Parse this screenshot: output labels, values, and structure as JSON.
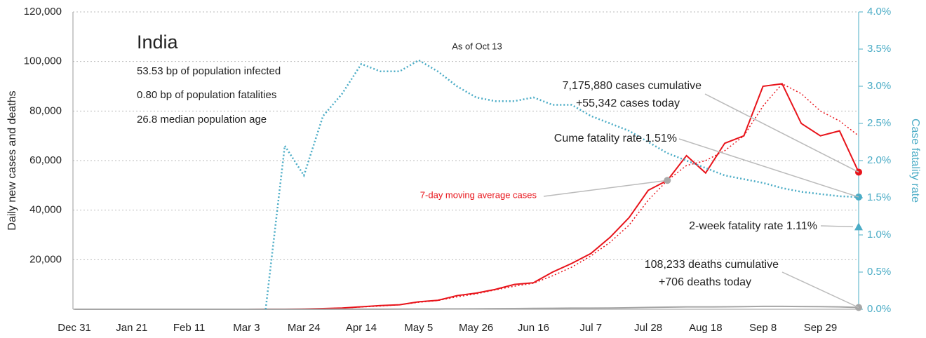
{
  "chart_data": {
    "type": "line",
    "title": "India",
    "subtitle": [
      "53.53 bp of population infected",
      "0.80 bp of population fatalities",
      "26.8 median population age"
    ],
    "ylabel": "Daily new cases and deaths",
    "y2label": "Case fatality rate",
    "categories": [
      "Dec 31",
      null,
      null,
      "Jan 21",
      null,
      null,
      "Feb 11",
      null,
      null,
      "Mar 3",
      null,
      null,
      "Mar 24",
      null,
      null,
      "Apr 14",
      null,
      null,
      "May 5",
      null,
      null,
      "May 26",
      null,
      null,
      "Jun 16",
      null,
      null,
      "Jul 7",
      null,
      null,
      "Jul 28",
      null,
      null,
      "Aug 18",
      null,
      null,
      "Sep 8",
      null,
      null,
      "Sep 29",
      null,
      null
    ],
    "series": [
      {
        "name": "Daily cases",
        "color": "#e8141b",
        "style": "solid",
        "values": [
          0,
          0,
          0,
          0,
          0,
          0,
          0,
          0,
          0,
          0,
          50,
          20,
          100,
          300,
          500,
          1000,
          1500,
          1800,
          3000,
          3600,
          5500,
          6500,
          8000,
          10000,
          10700,
          15000,
          18500,
          22500,
          29000,
          37000,
          48000,
          52000,
          62000,
          55000,
          67000,
          70000,
          90000,
          91000,
          75000,
          70000,
          72000,
          55342
        ]
      },
      {
        "name": "7-day moving average cases",
        "color": "#e8141b",
        "style": "dotted",
        "values": [
          0,
          0,
          0,
          0,
          0,
          0,
          0,
          0,
          0,
          0,
          40,
          60,
          90,
          250,
          500,
          900,
          1300,
          1800,
          2800,
          3500,
          5000,
          6200,
          7800,
          9300,
          10500,
          13500,
          17000,
          21500,
          27000,
          34000,
          44000,
          52000,
          58000,
          60000,
          64000,
          70000,
          82000,
          91000,
          87000,
          80000,
          76000,
          70000
        ]
      },
      {
        "name": "Daily deaths",
        "color": "#a6a6a6",
        "style": "solid",
        "values": [
          0,
          0,
          0,
          0,
          0,
          0,
          0,
          0,
          0,
          0,
          0,
          0,
          2,
          10,
          20,
          40,
          50,
          60,
          100,
          120,
          140,
          180,
          250,
          300,
          350,
          400,
          450,
          470,
          500,
          600,
          750,
          850,
          950,
          950,
          1000,
          1050,
          1150,
          1150,
          1100,
          1050,
          950,
          706
        ]
      },
      {
        "name": "Case fatality rate",
        "color": "#4bacc6",
        "style": "dotted",
        "axis": "y2",
        "values": [
          null,
          null,
          null,
          null,
          null,
          null,
          null,
          null,
          null,
          null,
          0,
          2.2,
          1.8,
          2.6,
          2.9,
          3.3,
          3.2,
          3.2,
          3.35,
          3.2,
          3.0,
          2.85,
          2.8,
          2.8,
          2.85,
          2.75,
          2.75,
          2.6,
          2.5,
          2.4,
          2.25,
          2.1,
          2.0,
          1.9,
          1.8,
          1.75,
          1.7,
          1.63,
          1.58,
          1.55,
          1.52,
          1.51
        ]
      }
    ],
    "two_week_fatality_rate": 1.11,
    "annotations": [
      "As of Oct 13",
      "7,175,880 cases cumulative",
      "+55,342 cases today",
      "Cume fatality rate 1.51%",
      "2-week fatality rate 1.11%",
      "108,233 deaths cumulative",
      "+706 deaths today"
    ],
    "ylim": [
      0,
      120000
    ],
    "yticks": [
      {
        "value": 20000,
        "label": "20,000"
      },
      {
        "value": 40000,
        "label": "40,000"
      },
      {
        "value": 60000,
        "label": "60,000"
      },
      {
        "value": 80000,
        "label": "80,000"
      },
      {
        "value": 100000,
        "label": "100,000"
      },
      {
        "value": 120000,
        "label": "120,000"
      }
    ],
    "y2lim": [
      0,
      4.0
    ],
    "y2ticks": [
      {
        "value": 0,
        "label": "0.0%"
      },
      {
        "value": 0.5,
        "label": "0.5%"
      },
      {
        "value": 1,
        "label": "1.0%"
      },
      {
        "value": 1.5,
        "label": "1.5%"
      },
      {
        "value": 2,
        "label": "2.0%"
      },
      {
        "value": 2.5,
        "label": "2.5%"
      },
      {
        "value": 3,
        "label": "3.0%"
      },
      {
        "value": 3.5,
        "label": "3.5%"
      },
      {
        "value": 4,
        "label": "4.0%"
      }
    ],
    "grid": true
  }
}
